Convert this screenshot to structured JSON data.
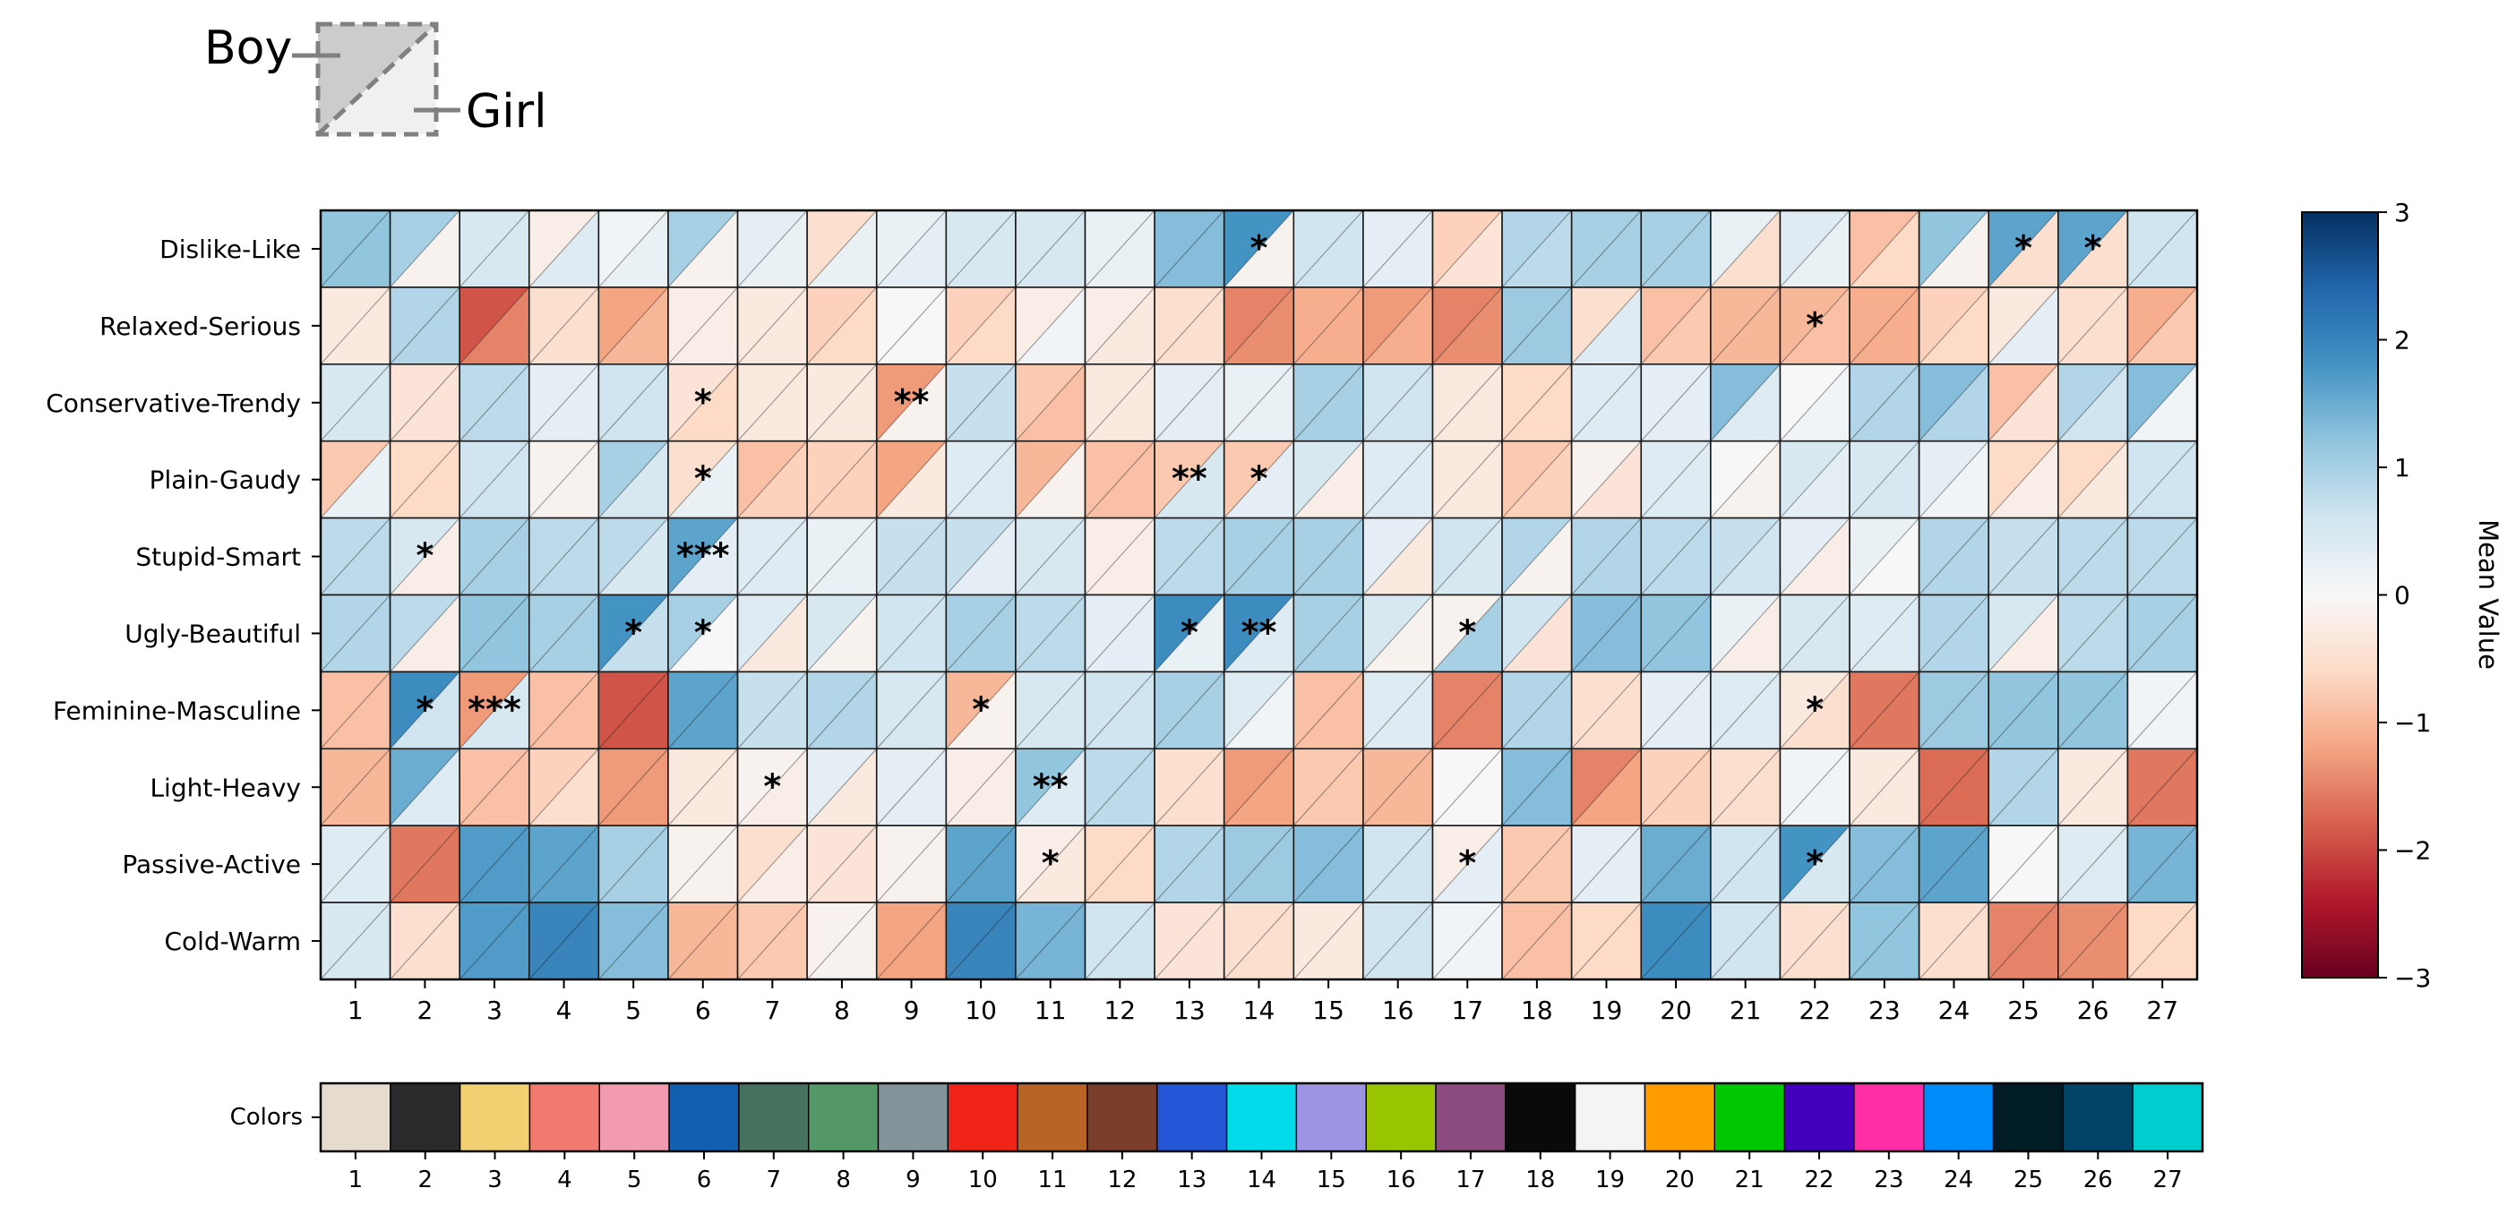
{
  "chart_data": {
    "type": "heatmap",
    "rows": [
      "Dislike-Like",
      "Relaxed-Serious",
      "Conservative-Trendy",
      "Plain-Gaudy",
      "Stupid-Smart",
      "Ugly-Beautiful",
      "Feminine-Masculine",
      "Light-Heavy",
      "Passive-Active",
      "Cold-Warm"
    ],
    "columns": [
      "1",
      "2",
      "3",
      "4",
      "5",
      "6",
      "7",
      "8",
      "9",
      "10",
      "11",
      "12",
      "13",
      "14",
      "15",
      "16",
      "17",
      "18",
      "19",
      "20",
      "21",
      "22",
      "23",
      "24",
      "25",
      "26",
      "27"
    ],
    "boy_values": [
      [
        1.2,
        1.0,
        0.5,
        -0.2,
        0.1,
        1.0,
        0.3,
        -0.5,
        0.2,
        0.5,
        0.5,
        0.2,
        1.3,
        1.8,
        0.6,
        0.3,
        -0.7,
        0.9,
        1.0,
        1.0,
        0.2,
        0.4,
        -0.9,
        1.2,
        1.6,
        1.6,
        0.6
      ],
      [
        -0.3,
        0.9,
        -1.9,
        -0.5,
        -1.2,
        -0.2,
        -0.3,
        -0.7,
        0.0,
        -0.7,
        -0.2,
        -0.2,
        -0.5,
        -1.5,
        -1.1,
        -1.3,
        -1.5,
        1.1,
        -0.5,
        -0.9,
        -1.0,
        -1.0,
        -1.1,
        -0.7,
        -0.3,
        -0.5,
        -1.1
      ],
      [
        0.5,
        -0.4,
        0.8,
        0.3,
        0.6,
        -0.4,
        -0.3,
        -0.3,
        -1.3,
        0.7,
        -0.8,
        -0.3,
        0.3,
        0.2,
        1.0,
        0.6,
        -0.3,
        -0.6,
        0.4,
        0.3,
        1.3,
        0.0,
        0.9,
        1.3,
        -0.9,
        0.9,
        1.3
      ],
      [
        -0.8,
        -0.6,
        0.6,
        -0.1,
        1.0,
        -0.5,
        -0.9,
        -0.7,
        -1.2,
        0.4,
        -1.0,
        -0.9,
        -0.8,
        -0.8,
        0.5,
        0.4,
        -0.3,
        -0.8,
        -0.1,
        0.4,
        0.0,
        0.5,
        0.5,
        0.3,
        -0.6,
        -0.6,
        0.6
      ],
      [
        0.8,
        0.5,
        1.0,
        0.8,
        0.8,
        1.6,
        0.4,
        0.2,
        0.7,
        0.7,
        0.5,
        -0.2,
        0.8,
        1.0,
        1.0,
        0.3,
        0.6,
        0.9,
        0.9,
        0.8,
        0.7,
        0.3,
        0.2,
        0.9,
        0.7,
        0.8,
        0.8
      ],
      [
        0.9,
        0.8,
        1.2,
        1.0,
        1.8,
        1.0,
        0.4,
        0.5,
        0.6,
        1.0,
        0.8,
        0.3,
        1.9,
        1.9,
        1.0,
        0.5,
        -0.1,
        0.6,
        1.3,
        1.2,
        0.2,
        0.5,
        0.4,
        0.9,
        0.5,
        0.8,
        1.0
      ],
      [
        -0.9,
        1.9,
        -1.3,
        -0.9,
        -1.9,
        1.6,
        0.7,
        0.9,
        0.5,
        -1.0,
        0.5,
        0.6,
        1.0,
        0.4,
        -0.9,
        0.4,
        -1.5,
        0.9,
        -0.5,
        0.3,
        0.4,
        -0.3,
        -1.6,
        1.1,
        1.2,
        1.2,
        0.1
      ],
      [
        -1.0,
        1.5,
        -0.9,
        -0.7,
        -1.3,
        -0.3,
        -0.1,
        0.3,
        0.3,
        -0.2,
        1.2,
        0.8,
        -0.5,
        -1.3,
        -0.8,
        -1.0,
        0.0,
        1.3,
        -1.5,
        -0.7,
        -0.5,
        0.1,
        -0.3,
        -1.7,
        0.9,
        -0.3,
        -1.6
      ],
      [
        0.4,
        -1.6,
        1.7,
        1.6,
        1.0,
        -0.1,
        -0.5,
        -0.4,
        -0.1,
        1.6,
        -0.2,
        -0.6,
        0.9,
        1.1,
        1.3,
        0.6,
        -0.2,
        -0.8,
        0.3,
        1.5,
        0.6,
        1.8,
        1.3,
        1.6,
        0.0,
        0.4,
        1.4
      ],
      [
        0.5,
        -0.5,
        1.7,
        2.0,
        1.3,
        -1.0,
        -0.8,
        -0.1,
        -1.2,
        2.0,
        1.4,
        0.6,
        -0.4,
        -0.5,
        -0.3,
        0.6,
        0.1,
        -0.9,
        -0.6,
        1.9,
        0.6,
        -0.5,
        1.2,
        -0.5,
        -1.5,
        -1.4,
        -0.6
      ]
    ],
    "girl_values": [
      [
        1.2,
        -0.1,
        0.5,
        0.4,
        0.2,
        -0.1,
        0.2,
        0.2,
        0.3,
        0.5,
        0.5,
        0.2,
        1.3,
        -0.1,
        0.6,
        0.3,
        -0.4,
        0.8,
        1.0,
        1.0,
        -0.5,
        0.2,
        -0.6,
        -0.1,
        -0.5,
        -0.5,
        0.6
      ],
      [
        -0.3,
        0.9,
        -1.5,
        -0.5,
        -1.0,
        -0.2,
        -0.3,
        -0.6,
        0.0,
        -0.6,
        0.1,
        -0.3,
        -0.5,
        -1.4,
        -1.1,
        -1.1,
        -1.4,
        1.1,
        0.4,
        -0.8,
        -1.0,
        -0.9,
        -1.1,
        -0.6,
        0.3,
        -0.5,
        -0.8
      ],
      [
        0.5,
        -0.4,
        0.8,
        0.3,
        0.6,
        -0.6,
        -0.3,
        -0.3,
        -0.1,
        0.7,
        -0.9,
        -0.3,
        0.3,
        0.2,
        1.0,
        0.6,
        -0.3,
        -0.6,
        0.4,
        0.3,
        0.4,
        0.1,
        0.9,
        0.9,
        -0.4,
        0.6,
        0.1
      ],
      [
        0.2,
        -0.6,
        0.6,
        -0.1,
        0.5,
        0.2,
        -0.7,
        -0.7,
        -0.3,
        0.4,
        -0.1,
        -0.9,
        0.5,
        0.3,
        -0.2,
        0.4,
        -0.3,
        -0.7,
        -0.4,
        0.4,
        -0.1,
        0.3,
        0.5,
        0.1,
        -0.2,
        -0.3,
        0.6
      ],
      [
        0.8,
        -0.2,
        1.0,
        0.8,
        0.5,
        0.3,
        0.4,
        0.2,
        0.7,
        0.3,
        0.5,
        -0.2,
        0.8,
        1.0,
        1.0,
        -0.3,
        0.5,
        -0.1,
        0.9,
        0.8,
        0.6,
        -0.2,
        0.0,
        0.9,
        0.7,
        0.8,
        0.8
      ],
      [
        0.9,
        -0.2,
        1.2,
        1.0,
        0.7,
        0.0,
        -0.3,
        -0.1,
        0.6,
        1.0,
        0.8,
        0.3,
        0.2,
        0.4,
        1.0,
        -0.1,
        1.0,
        -0.4,
        1.3,
        1.2,
        -0.2,
        0.5,
        0.4,
        0.9,
        -0.2,
        0.8,
        1.0
      ],
      [
        -0.9,
        0.6,
        0.5,
        -0.9,
        -1.9,
        1.6,
        0.7,
        0.9,
        0.5,
        -0.1,
        0.5,
        0.6,
        1.0,
        0.1,
        -0.9,
        0.4,
        -1.5,
        0.9,
        -0.5,
        0.3,
        0.4,
        -0.5,
        -1.6,
        1.1,
        1.2,
        1.2,
        0.1
      ],
      [
        -1.0,
        0.4,
        -0.9,
        -0.5,
        -1.3,
        -0.3,
        -0.2,
        -0.3,
        0.3,
        -0.2,
        0.4,
        0.8,
        -0.5,
        -1.2,
        -0.8,
        -1.0,
        0.0,
        1.3,
        -1.2,
        -0.7,
        -0.5,
        0.1,
        -0.3,
        -1.7,
        0.9,
        -0.3,
        -1.6
      ],
      [
        0.4,
        -1.6,
        1.7,
        1.6,
        1.0,
        -0.1,
        -0.2,
        -0.4,
        -0.1,
        1.6,
        -0.3,
        -0.6,
        0.9,
        1.1,
        1.3,
        0.6,
        0.3,
        -0.8,
        0.3,
        1.5,
        0.6,
        0.5,
        1.3,
        1.6,
        0.0,
        0.4,
        1.4
      ],
      [
        0.5,
        -0.5,
        1.7,
        2.0,
        1.3,
        -1.0,
        -0.8,
        -0.1,
        -1.2,
        2.0,
        1.4,
        0.6,
        -0.4,
        -0.5,
        -0.3,
        0.6,
        0.1,
        -0.9,
        -0.6,
        1.9,
        0.6,
        -0.5,
        1.2,
        -0.5,
        -1.5,
        -1.4,
        -0.6
      ]
    ],
    "significance": [
      {
        "row": 0,
        "col": 13,
        "label": "*"
      },
      {
        "row": 0,
        "col": 24,
        "label": "*"
      },
      {
        "row": 0,
        "col": 25,
        "label": "*"
      },
      {
        "row": 1,
        "col": 21,
        "label": "*"
      },
      {
        "row": 2,
        "col": 5,
        "label": "*"
      },
      {
        "row": 2,
        "col": 8,
        "label": "**"
      },
      {
        "row": 3,
        "col": 5,
        "label": "*"
      },
      {
        "row": 3,
        "col": 12,
        "label": "**"
      },
      {
        "row": 3,
        "col": 13,
        "label": "*"
      },
      {
        "row": 4,
        "col": 1,
        "label": "*"
      },
      {
        "row": 4,
        "col": 5,
        "label": "***"
      },
      {
        "row": 5,
        "col": 4,
        "label": "*"
      },
      {
        "row": 5,
        "col": 5,
        "label": "*"
      },
      {
        "row": 5,
        "col": 12,
        "label": "*"
      },
      {
        "row": 5,
        "col": 13,
        "label": "**"
      },
      {
        "row": 5,
        "col": 16,
        "label": "*"
      },
      {
        "row": 6,
        "col": 1,
        "label": "*"
      },
      {
        "row": 6,
        "col": 2,
        "label": "***"
      },
      {
        "row": 6,
        "col": 9,
        "label": "*"
      },
      {
        "row": 6,
        "col": 21,
        "label": "*"
      },
      {
        "row": 7,
        "col": 6,
        "label": "*"
      },
      {
        "row": 7,
        "col": 10,
        "label": "**"
      },
      {
        "row": 8,
        "col": 10,
        "label": "*"
      },
      {
        "row": 8,
        "col": 16,
        "label": "*"
      },
      {
        "row": 8,
        "col": 21,
        "label": "*"
      }
    ],
    "value_range": [
      -3,
      3
    ],
    "colormap": "RdBu",
    "colorbar": {
      "label": "Mean Value",
      "ticks": [
        "3",
        "2",
        "1",
        "0",
        "−1",
        "−2",
        "−3"
      ],
      "tick_values": [
        3,
        2,
        1,
        0,
        -1,
        -2,
        -3
      ]
    },
    "legend": {
      "upper_triangle": "Boy",
      "lower_triangle": "Girl",
      "placement": "top-left"
    },
    "color_strip": {
      "label": "Colors",
      "tick_labels": [
        "1",
        "2",
        "3",
        "4",
        "5",
        "6",
        "7",
        "8",
        "9",
        "10",
        "11",
        "12",
        "13",
        "14",
        "15",
        "16",
        "17",
        "18",
        "19",
        "20",
        "21",
        "22",
        "23",
        "24",
        "25",
        "26",
        "27"
      ],
      "swatches": [
        "#e6dbcf",
        "#2a2a2c",
        "#f0d070",
        "#f07a70",
        "#f29ab0",
        "#1460b0",
        "#45735d",
        "#559868",
        "#82949a",
        "#f02418",
        "#b86426",
        "#7a3e2a",
        "#2656d8",
        "#00dcea",
        "#9e94e6",
        "#98c400",
        "#8c4c80",
        "#0a0a0a",
        "#f4f4f4",
        "#ff9c00",
        "#00c800",
        "#4200be",
        "#ff2ea6",
        "#008cf8",
        "#001c24",
        "#004568",
        "#00cece"
      ]
    }
  }
}
